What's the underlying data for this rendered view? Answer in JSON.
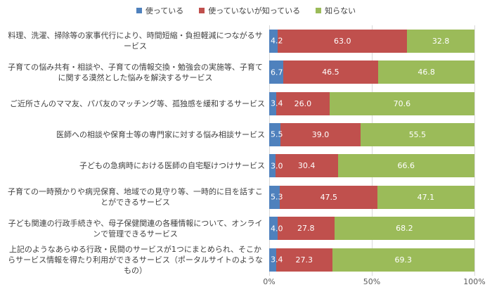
{
  "chart_data": {
    "type": "bar",
    "variant": "100%-stacked-horizontal",
    "title": "",
    "unit": "%",
    "xlim": [
      0,
      100
    ],
    "x_ticks": [
      "0%",
      "50%",
      "100%"
    ],
    "grid": "vertical",
    "legend_position": "top",
    "categories": [
      "料理、洗濯、掃除等の家事代行により、時間短縮・負担軽減につながるサービス",
      "子育ての悩み共有・相談や、子育ての情報交換・勉強会の実施等、子育てに関する漠然とした悩みを解決するサービス",
      "ご近所さんのママ友、パパ友のマッチング等、孤独感を緩和するサービス",
      "医師への相談や保育士等の専門家に対する悩み相談サービス",
      "子どもの急病時における医師の自宅駆けつけサービス",
      "子育ての一時預かりや病児保育、地域での見守り等、一時的に目を話すことができるサービス",
      "子ども関連の行政手続きや、母子保健関連の各種情報について、オンラインで管理できるサービス",
      "上記のようなあらゆる行政・民間のサービスが1つにまとめられ、そこからサービス情報を得たり利用ができるサービス（ポータルサイトのようなもの）"
    ],
    "series": [
      {
        "key": "used",
        "name": "使っている",
        "color": "#4F81BD",
        "values": [
          4.2,
          6.7,
          3.4,
          5.5,
          3.0,
          5.3,
          4.0,
          3.4
        ]
      },
      {
        "key": "known-not-used",
        "name": "使っていないが知っている",
        "color": "#C0504D",
        "values": [
          63.0,
          46.5,
          26.0,
          39.0,
          30.4,
          47.5,
          27.8,
          27.3
        ]
      },
      {
        "key": "unknown",
        "name": "知らない",
        "color": "#9BBB59",
        "values": [
          32.8,
          46.8,
          70.6,
          55.5,
          66.6,
          47.1,
          68.2,
          69.3
        ]
      }
    ],
    "colors": {
      "gridline": "#d9d9d9",
      "category_label": "#3f3f3f",
      "axis_label": "#595959",
      "data_label": "#ffffff"
    }
  }
}
